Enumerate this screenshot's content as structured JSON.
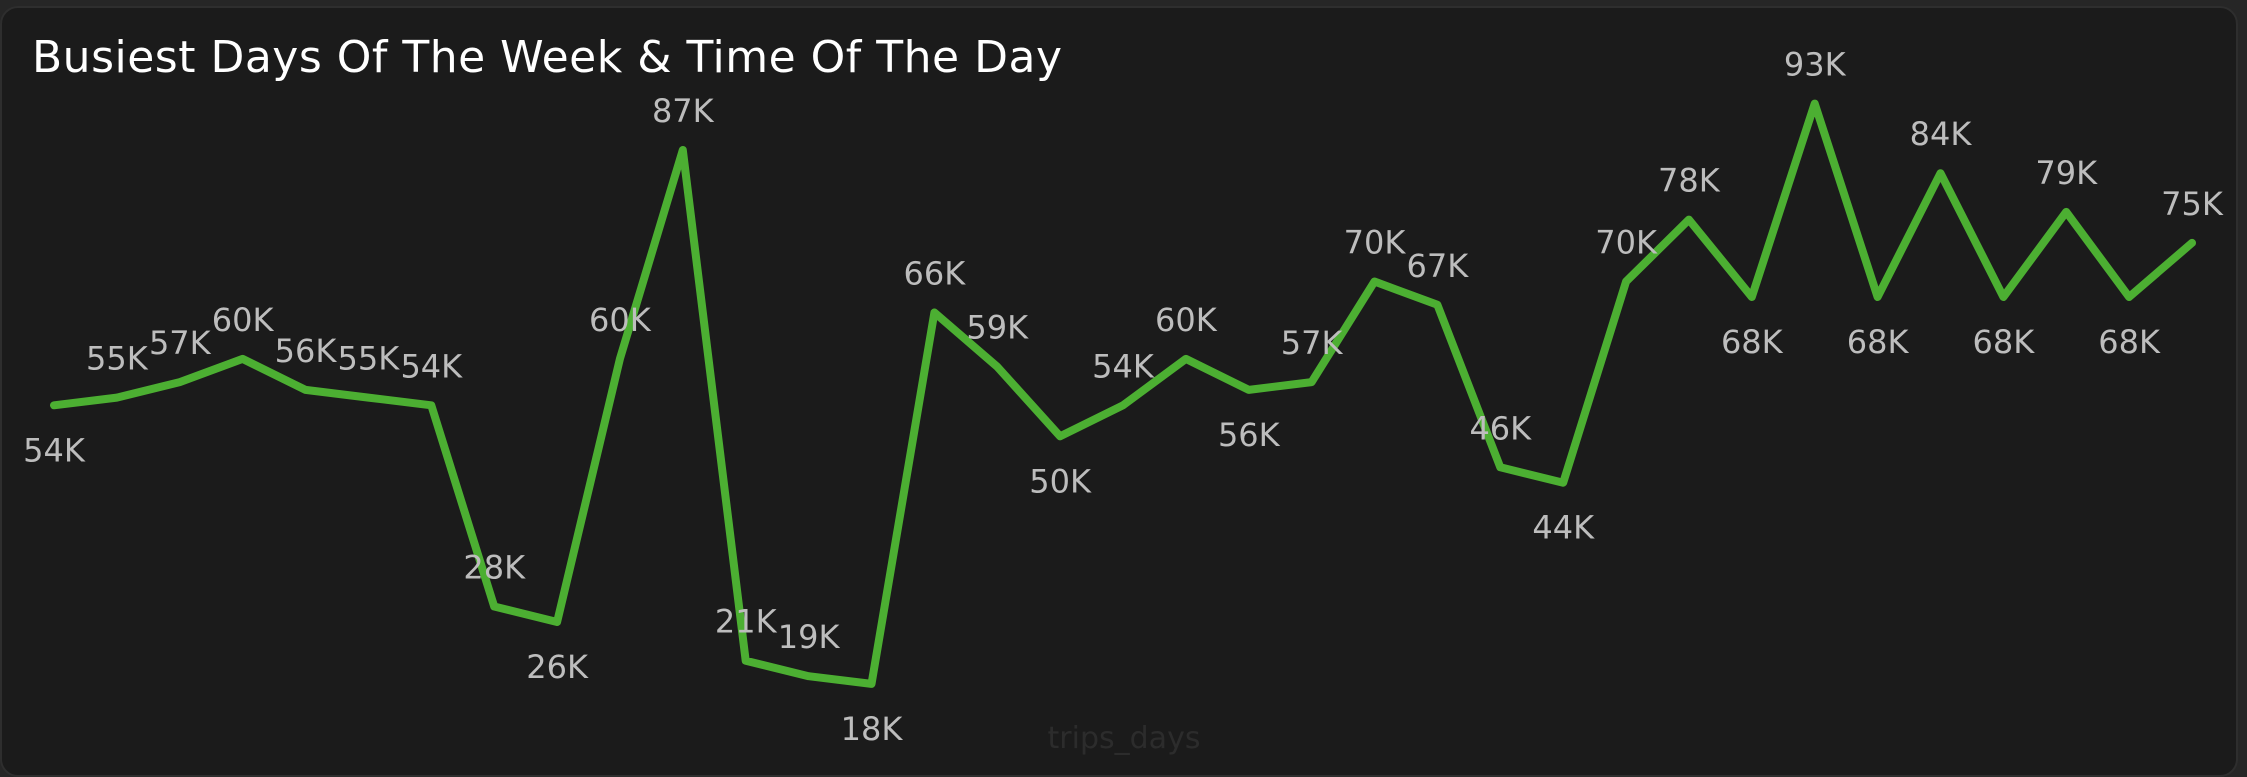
{
  "chart_data": {
    "type": "line",
    "title": "Busiest Days Of The Week & Time Of The Day",
    "xlabel": "trips_days",
    "ylabel": "",
    "ylim": [
      0,
      100000
    ],
    "grid": false,
    "legend": "none",
    "line_color": "#4caf32",
    "values": [
      54000,
      55000,
      57000,
      60000,
      56000,
      55000,
      54000,
      28000,
      26000,
      60000,
      87000,
      21000,
      19000,
      18000,
      66000,
      59000,
      50000,
      54000,
      60000,
      56000,
      57000,
      70000,
      67000,
      46000,
      44000,
      70000,
      78000,
      68000,
      93000,
      68000,
      84000,
      68000,
      79000,
      68000,
      75000
    ],
    "data_labels": [
      "54K",
      "55K",
      "57K",
      "60K",
      "56K",
      "55K",
      "54K",
      "28K",
      "26K",
      "60K",
      "87K",
      "21K",
      "19K",
      "18K",
      "66K",
      "59K",
      "50K",
      "54K",
      "60K",
      "56K",
      "57K",
      "70K",
      "67K",
      "46K",
      "44K",
      "70K",
      "78K",
      "68K",
      "93K",
      "68K",
      "84K",
      "68K",
      "79K",
      "68K",
      "75K"
    ]
  }
}
